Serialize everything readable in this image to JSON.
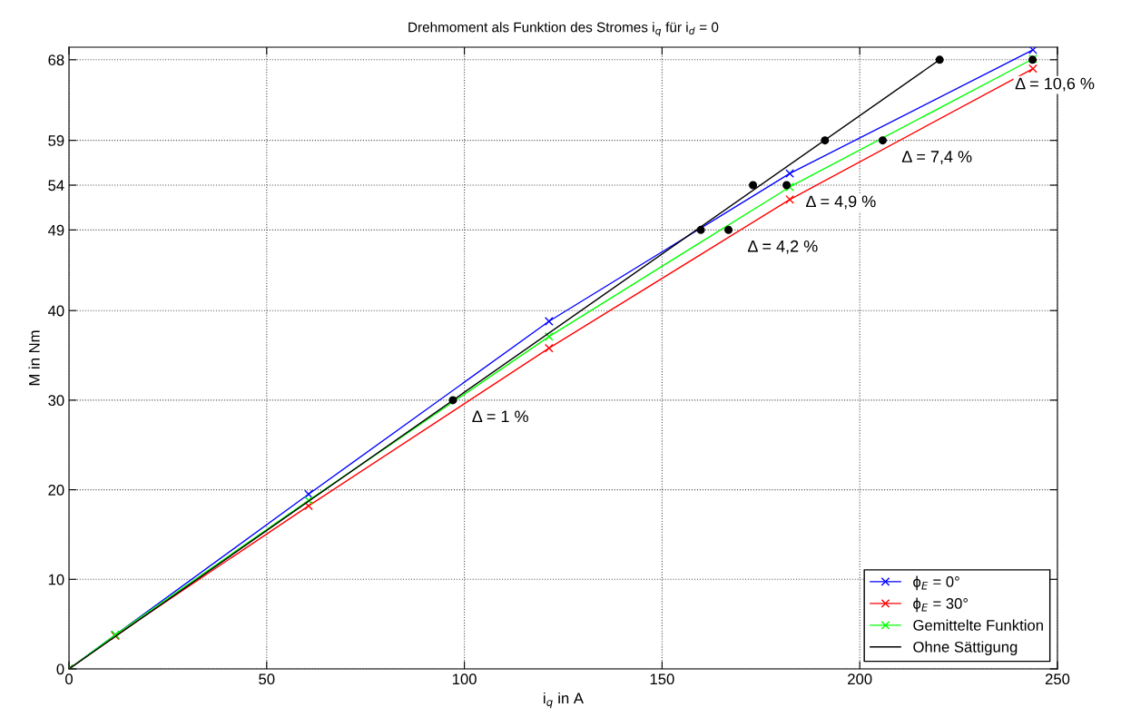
{
  "chart_data": {
    "type": "line",
    "title": "Drehmoment als Funktion des Stromes i$_{q}$ für i$_{d}$ = 0",
    "xlabel": "i$_{q}$ in A",
    "ylabel": "M in Nm",
    "xlim": [
      0,
      250
    ],
    "xticks": [
      0,
      50,
      100,
      150,
      200,
      250
    ],
    "ylim": [
      0,
      69.4
    ],
    "yticks": [
      0,
      10,
      20,
      30,
      40,
      49,
      54,
      59,
      68
    ],
    "grid": true,
    "legend": "bottom right",
    "line_style": "solid",
    "series": [
      {
        "name": "ϕ$_{E}$ = 0°",
        "color": "#0000ff",
        "marker": "cross",
        "x": [
          0,
          11.7,
          60.6,
          121.4,
          182.3,
          243.8
        ],
        "values": [
          0,
          3.8,
          19.5,
          38.8,
          55.3,
          69.1
        ]
      },
      {
        "name": "ϕ$_{E}$ = 30°",
        "color": "#ff0000",
        "marker": "cross",
        "x": [
          0,
          11.7,
          60.6,
          121.4,
          182.3,
          243.8
        ],
        "values": [
          0,
          3.7,
          18.2,
          35.8,
          52.4,
          67.0
        ]
      },
      {
        "name": "Gemittelte Funktion",
        "color": "#00ff00",
        "marker": "cross",
        "x": [
          0,
          11.7,
          60.6,
          121.4,
          182.3,
          243.8
        ],
        "values": [
          0,
          3.8,
          18.8,
          37.1,
          53.8,
          68.1
        ]
      },
      {
        "name": "Ohne Sättigung",
        "color": "#000000",
        "marker": "none",
        "x": [
          0,
          220.2
        ],
        "values": [
          0,
          68
        ]
      },
      {
        "type": "scatter",
        "color": "#000000",
        "marker": "circle",
        "x": [
          97.1,
          159.8,
          173,
          191.2,
          220.2,
          166.8,
          181.5,
          205.8,
          243.7
        ],
        "values": [
          30,
          49,
          54,
          59,
          68,
          49,
          54,
          59,
          68
        ]
      }
    ],
    "annotations": [
      {
        "text": "Δ = 1 %",
        "x": 97.1,
        "y": 30
      },
      {
        "text": "Δ = 4,2 %",
        "x": 166.8,
        "y": 49
      },
      {
        "text": "Δ = 4,9 %",
        "x": 181.5,
        "y": 54
      },
      {
        "text": "Δ = 7,4 %",
        "x": 205.8,
        "y": 59
      },
      {
        "text": "Δ = 10,6 %",
        "x": 243.7,
        "y": 68
      }
    ]
  }
}
